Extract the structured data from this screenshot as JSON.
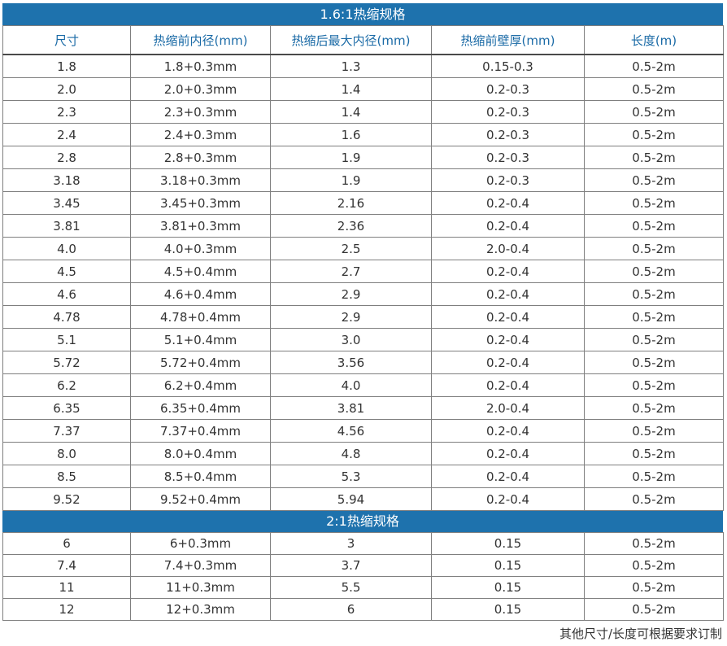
{
  "section1": {
    "title": "1.6:1热缩规格",
    "headers": [
      "尺寸",
      "热缩前内径(mm)",
      "热缩后最大内径(mm)",
      "热缩前壁厚(mm)",
      "长度(m)"
    ],
    "rows": [
      [
        "1.8",
        "1.8+0.3mm",
        "1.3",
        "0.15-0.3",
        "0.5-2m"
      ],
      [
        "2.0",
        "2.0+0.3mm",
        "1.4",
        "0.2-0.3",
        "0.5-2m"
      ],
      [
        "2.3",
        "2.3+0.3mm",
        "1.4",
        "0.2-0.3",
        "0.5-2m"
      ],
      [
        "2.4",
        "2.4+0.3mm",
        "1.6",
        "0.2-0.3",
        "0.5-2m"
      ],
      [
        "2.8",
        "2.8+0.3mm",
        "1.9",
        "0.2-0.3",
        "0.5-2m"
      ],
      [
        "3.18",
        "3.18+0.3mm",
        "1.9",
        "0.2-0.3",
        "0.5-2m"
      ],
      [
        "3.45",
        "3.45+0.3mm",
        "2.16",
        "0.2-0.4",
        "0.5-2m"
      ],
      [
        "3.81",
        "3.81+0.3mm",
        "2.36",
        "0.2-0.4",
        "0.5-2m"
      ],
      [
        "4.0",
        "4.0+0.3mm",
        "2.5",
        "2.0-0.4",
        "0.5-2m"
      ],
      [
        "4.5",
        "4.5+0.4mm",
        "2.7",
        "0.2-0.4",
        "0.5-2m"
      ],
      [
        "4.6",
        "4.6+0.4mm",
        "2.9",
        "0.2-0.4",
        "0.5-2m"
      ],
      [
        "4.78",
        "4.78+0.4mm",
        "2.9",
        "0.2-0.4",
        "0.5-2m"
      ],
      [
        "5.1",
        "5.1+0.4mm",
        "3.0",
        "0.2-0.4",
        "0.5-2m"
      ],
      [
        "5.72",
        "5.72+0.4mm",
        "3.56",
        "0.2-0.4",
        "0.5-2m"
      ],
      [
        "6.2",
        "6.2+0.4mm",
        "4.0",
        "0.2-0.4",
        "0.5-2m"
      ],
      [
        "6.35",
        "6.35+0.4mm",
        "3.81",
        "2.0-0.4",
        "0.5-2m"
      ],
      [
        "7.37",
        "7.37+0.4mm",
        "4.56",
        "0.2-0.4",
        "0.5-2m"
      ],
      [
        "8.0",
        "8.0+0.4mm",
        "4.8",
        "0.2-0.4",
        "0.5-2m"
      ],
      [
        "8.5",
        "8.5+0.4mm",
        "5.3",
        "0.2-0.4",
        "0.5-2m"
      ],
      [
        "9.52",
        "9.52+0.4mm",
        "5.94",
        "0.2-0.4",
        "0.5-2m"
      ]
    ]
  },
  "section2": {
    "title": "2:1热缩规格",
    "rows": [
      [
        "6",
        "6+0.3mm",
        "3",
        "0.15",
        "0.5-2m"
      ],
      [
        "7.4",
        "7.4+0.3mm",
        "3.7",
        "0.15",
        "0.5-2m"
      ],
      [
        "11",
        "11+0.3mm",
        "5.5",
        "0.15",
        "0.5-2m"
      ],
      [
        "12",
        "12+0.3mm",
        "6",
        "0.15",
        "0.5-2m"
      ]
    ]
  },
  "footer_note": "其他尺寸/长度可根据要求订制",
  "colors": {
    "banner": "#1e72ad",
    "header_text": "#1a6aa6"
  }
}
